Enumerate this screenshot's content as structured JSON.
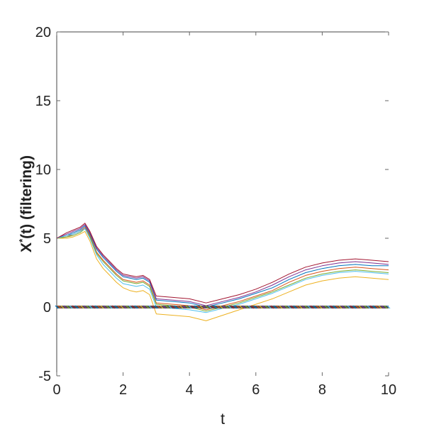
{
  "chart_data": {
    "type": "line",
    "title": "",
    "xlabel": "t",
    "ylabel_main": "X",
    "ylabel_sup": "*",
    "ylabel_rest": "(t) (filtering)",
    "xlim": [
      0,
      10
    ],
    "ylim": [
      -5,
      20
    ],
    "x_ticks": [
      0,
      2,
      4,
      6,
      8,
      10
    ],
    "y_ticks": [
      -5,
      0,
      5,
      10,
      15,
      20
    ],
    "grid": false,
    "legend": "none",
    "series_colors": [
      "#0072BD",
      "#D95319",
      "#EDB120",
      "#7E2F8E",
      "#77AC30",
      "#4DBEEE",
      "#A2142F"
    ],
    "x": [
      0,
      0.3,
      0.5,
      0.7,
      0.85,
      1.0,
      1.2,
      1.4,
      1.6,
      1.8,
      2.0,
      2.2,
      2.4,
      2.6,
      2.8,
      3.0,
      3.5,
      4.0,
      4.5,
      5.0,
      5.5,
      6.0,
      6.5,
      7.0,
      7.5,
      8.0,
      8.5,
      9.0,
      9.5,
      10.0
    ],
    "series": [
      {
        "values": [
          5.0,
          5.2,
          5.4,
          5.6,
          5.9,
          5.3,
          4.2,
          3.6,
          3.1,
          2.6,
          2.2,
          2.1,
          2.0,
          2.1,
          1.8,
          0.5,
          0.4,
          0.3,
          0.0,
          0.3,
          0.6,
          1.0,
          1.4,
          2.0,
          2.5,
          2.8,
          3.0,
          3.1,
          3.0,
          3.0
        ]
      },
      {
        "values": [
          5.0,
          5.1,
          5.3,
          5.5,
          5.8,
          5.2,
          4.0,
          3.4,
          2.9,
          2.4,
          2.0,
          1.9,
          1.8,
          1.9,
          1.6,
          0.3,
          0.2,
          0.1,
          -0.2,
          0.1,
          0.4,
          0.8,
          1.2,
          1.8,
          2.3,
          2.6,
          2.8,
          2.9,
          2.8,
          2.7
        ]
      },
      {
        "values": [
          5.0,
          5.0,
          5.1,
          5.3,
          5.5,
          4.8,
          3.5,
          2.8,
          2.3,
          1.8,
          1.4,
          1.2,
          1.1,
          1.2,
          0.9,
          -0.5,
          -0.6,
          -0.7,
          -1.0,
          -0.6,
          -0.2,
          0.2,
          0.6,
          1.1,
          1.6,
          1.9,
          2.1,
          2.2,
          2.1,
          2.0
        ]
      },
      {
        "values": [
          5.0,
          5.3,
          5.5,
          5.7,
          6.0,
          5.4,
          4.3,
          3.7,
          3.2,
          2.7,
          2.3,
          2.2,
          2.1,
          2.2,
          1.9,
          0.6,
          0.5,
          0.4,
          0.1,
          0.4,
          0.7,
          1.1,
          1.6,
          2.2,
          2.7,
          3.0,
          3.2,
          3.3,
          3.2,
          3.1
        ]
      },
      {
        "values": [
          5.0,
          5.1,
          5.2,
          5.4,
          5.7,
          5.1,
          3.9,
          3.3,
          2.8,
          2.3,
          1.9,
          1.8,
          1.7,
          1.8,
          1.5,
          0.2,
          0.1,
          0.0,
          -0.3,
          0.0,
          0.3,
          0.7,
          1.1,
          1.6,
          2.1,
          2.4,
          2.6,
          2.7,
          2.6,
          2.5
        ]
      },
      {
        "values": [
          5.0,
          5.2,
          5.3,
          5.5,
          5.7,
          5.0,
          3.8,
          3.1,
          2.6,
          2.1,
          1.7,
          1.6,
          1.5,
          1.6,
          1.3,
          0.0,
          -0.1,
          -0.2,
          -0.4,
          -0.1,
          0.2,
          0.6,
          1.0,
          1.5,
          2.0,
          2.3,
          2.5,
          2.6,
          2.5,
          2.4
        ]
      },
      {
        "values": [
          5.0,
          5.4,
          5.6,
          5.8,
          6.1,
          5.5,
          4.4,
          3.8,
          3.3,
          2.8,
          2.4,
          2.3,
          2.2,
          2.3,
          2.0,
          0.8,
          0.7,
          0.6,
          0.3,
          0.6,
          0.9,
          1.3,
          1.8,
          2.4,
          2.9,
          3.2,
          3.4,
          3.5,
          3.4,
          3.3
        ]
      }
    ],
    "baseline_value": 0
  }
}
